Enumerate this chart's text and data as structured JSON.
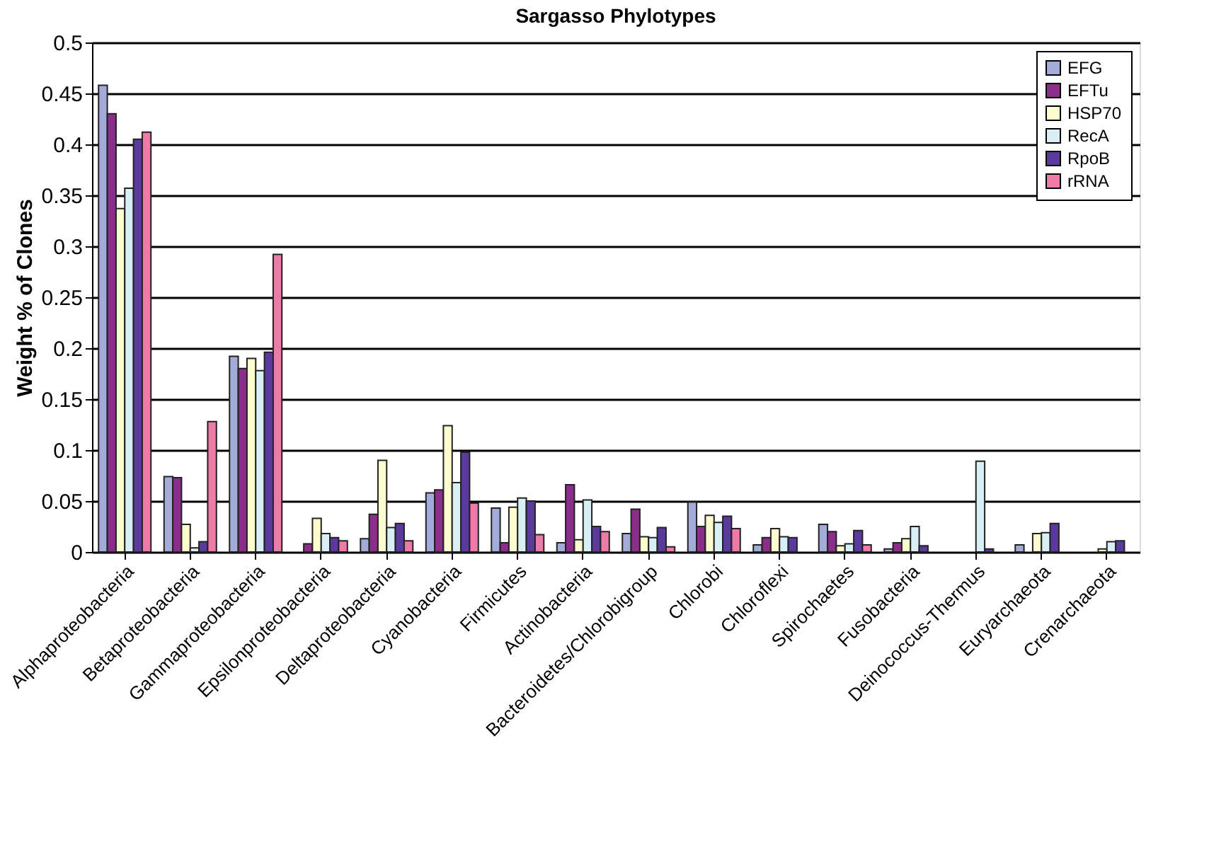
{
  "chart_data": {
    "type": "bar",
    "title": "Sargasso Phylotypes",
    "ylabel": "Weight % of Clones",
    "categories": [
      "Alphaproteobacteria",
      "Betaproteobacteria",
      "Gammaproteobacteria",
      "Epsilonproteobacteria",
      "Deltaproteobacteria",
      "Cyanobacteria",
      "Firmicutes",
      "Actinobacteria",
      "Bacteroidetes/Chlorobigroup",
      "Chlorobi",
      "Chloroflexi",
      "Spirochaetes",
      "Fusobacteria",
      "Deinococcus-Thermus",
      "Euryarchaeota",
      "Crenarchaeota"
    ],
    "series": [
      {
        "name": "EFG",
        "color": "#a3acd9",
        "values": [
          0.458,
          0.074,
          0.192,
          null,
          0.013,
          0.058,
          0.043,
          0.009,
          0.018,
          0.049,
          0.007,
          0.027,
          0.003,
          null,
          0.007,
          null
        ]
      },
      {
        "name": "EFTu",
        "color": "#8b2d8b",
        "values": [
          0.43,
          0.073,
          0.18,
          0.008,
          0.037,
          0.061,
          0.009,
          0.066,
          0.042,
          0.025,
          0.014,
          0.02,
          0.009,
          null,
          null,
          null
        ]
      },
      {
        "name": "HSP70",
        "color": "#fdfccf",
        "values": [
          0.337,
          0.027,
          0.19,
          0.033,
          0.09,
          0.124,
          0.044,
          0.012,
          0.015,
          0.036,
          0.023,
          0.006,
          0.013,
          null,
          0.018,
          0.003
        ]
      },
      {
        "name": "RecA",
        "color": "#d8f0f5",
        "values": [
          0.357,
          0.004,
          0.178,
          0.018,
          0.024,
          0.068,
          0.053,
          0.051,
          0.014,
          0.029,
          0.015,
          0.008,
          0.025,
          0.089,
          0.019,
          0.01
        ]
      },
      {
        "name": "RpoB",
        "color": "#5b3a9e",
        "values": [
          0.405,
          0.01,
          0.196,
          0.014,
          0.028,
          0.098,
          0.05,
          0.025,
          0.024,
          0.035,
          0.014,
          0.021,
          0.006,
          0.003,
          0.028,
          0.011
        ]
      },
      {
        "name": "rRNA",
        "color": "#ee7aa8",
        "values": [
          0.412,
          0.128,
          0.292,
          0.011,
          0.011,
          0.048,
          0.017,
          0.02,
          0.005,
          0.023,
          null,
          0.007,
          null,
          null,
          null,
          null
        ]
      }
    ],
    "ylim": [
      0,
      0.5
    ],
    "yticks": [
      0,
      0.05,
      0.1,
      0.15,
      0.2,
      0.25,
      0.3,
      0.35,
      0.4,
      0.45,
      0.5
    ],
    "grid": "y",
    "legend": "top right"
  }
}
